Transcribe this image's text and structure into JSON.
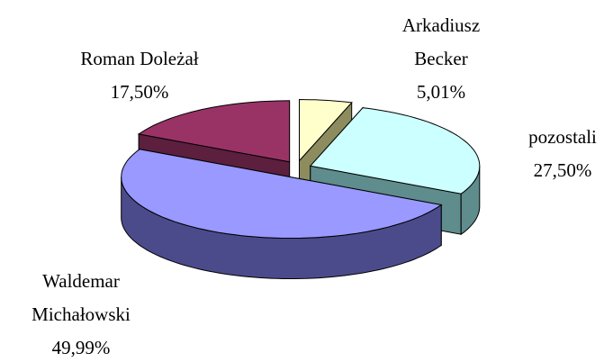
{
  "chart_data": {
    "type": "pie3d",
    "categories": [
      "Arkadiusz Becker",
      "pozostali",
      "Waldemar Michałowski",
      "Roman Doleżał"
    ],
    "values": [
      5.01,
      27.5,
      49.99,
      17.5
    ],
    "value_labels": [
      "5,01%",
      "27,50%",
      "49,99%",
      "17,50%"
    ],
    "colors": [
      "#ffffcc",
      "#ccffff",
      "#9999ff",
      "#993366"
    ],
    "side_colors": [
      "#8c8c5e",
      "#5f8c8c",
      "#4b4b8c",
      "#5c1f3e"
    ]
  }
}
